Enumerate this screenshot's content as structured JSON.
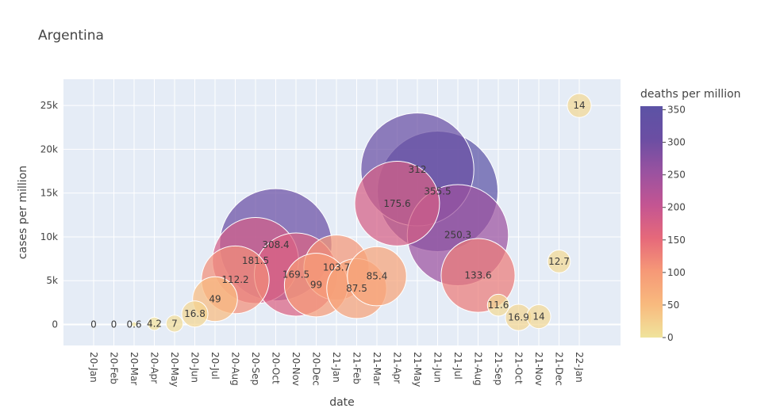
{
  "chart_data": {
    "type": "scatter",
    "title": "Argentina",
    "xlabel": "date",
    "ylabel": "cases per million",
    "colorbar_title": "deaths per million",
    "categories": [
      "20-Jan",
      "20-Feb",
      "20-Mar",
      "20-Apr",
      "20-May",
      "20-Jun",
      "20-Jul",
      "20-Aug",
      "20-Sep",
      "20-Oct",
      "20-Nov",
      "20-Dec",
      "21-Jan",
      "21-Feb",
      "21-Mar",
      "21-Apr",
      "21-May",
      "21-Jun",
      "21-Jul",
      "21-Aug",
      "21-Sep",
      "21-Oct",
      "21-Nov",
      "21-Dec",
      "22-Jan"
    ],
    "series": [
      {
        "name": "Argentina",
        "cases_per_million": [
          0,
          0,
          20,
          80,
          100,
          1200,
          2900,
          5100,
          7300,
          9100,
          5700,
          4500,
          6500,
          4100,
          5500,
          13800,
          17700,
          15200,
          10200,
          5600,
          2200,
          800,
          900,
          7200,
          25000
        ],
        "deaths_per_million": [
          0,
          0,
          0.6,
          4.2,
          7,
          16.8,
          49,
          112.2,
          181.5,
          308.4,
          169.5,
          99,
          103.7,
          87.5,
          85.4,
          175.6,
          312,
          355.5,
          250.3,
          133.6,
          11.6,
          16.9,
          14,
          12.7,
          14
        ],
        "labels": [
          "0",
          "0",
          "0.6",
          "4.2",
          "7",
          "16.8",
          "49",
          "112.2",
          "181.5",
          "308.4",
          "169.5",
          "99",
          "103.7",
          "87.5",
          "85.4",
          "175.6",
          "312",
          "355.5",
          "250.3",
          "133.6",
          "11.6",
          "16.9",
          "14",
          "12.7",
          "14"
        ]
      }
    ],
    "y_ticks": [
      {
        "value": 0,
        "label": "0"
      },
      {
        "value": 5000,
        "label": "5k"
      },
      {
        "value": 10000,
        "label": "10k"
      },
      {
        "value": 15000,
        "label": "15k"
      },
      {
        "value": 20000,
        "label": "20k"
      },
      {
        "value": 25000,
        "label": "25k"
      }
    ],
    "ylim": [
      -2400,
      28000
    ],
    "colorbar_range": [
      0,
      355.5
    ],
    "colorbar_ticks": [
      {
        "value": 0,
        "label": "0"
      },
      {
        "value": 50,
        "label": "50"
      },
      {
        "value": 100,
        "label": "100"
      },
      {
        "value": 150,
        "label": "150"
      },
      {
        "value": 200,
        "label": "200"
      },
      {
        "value": 250,
        "label": "250"
      },
      {
        "value": 300,
        "label": "300"
      },
      {
        "value": 350,
        "label": "350"
      }
    ],
    "colorscale": [
      "#f0e39c",
      "#f8ba7e",
      "#f69977",
      "#e6697a",
      "#c45592",
      "#9a52a0",
      "#6b4ea3",
      "#5c53a5"
    ],
    "grid": true,
    "legend": "colorbar-right"
  }
}
